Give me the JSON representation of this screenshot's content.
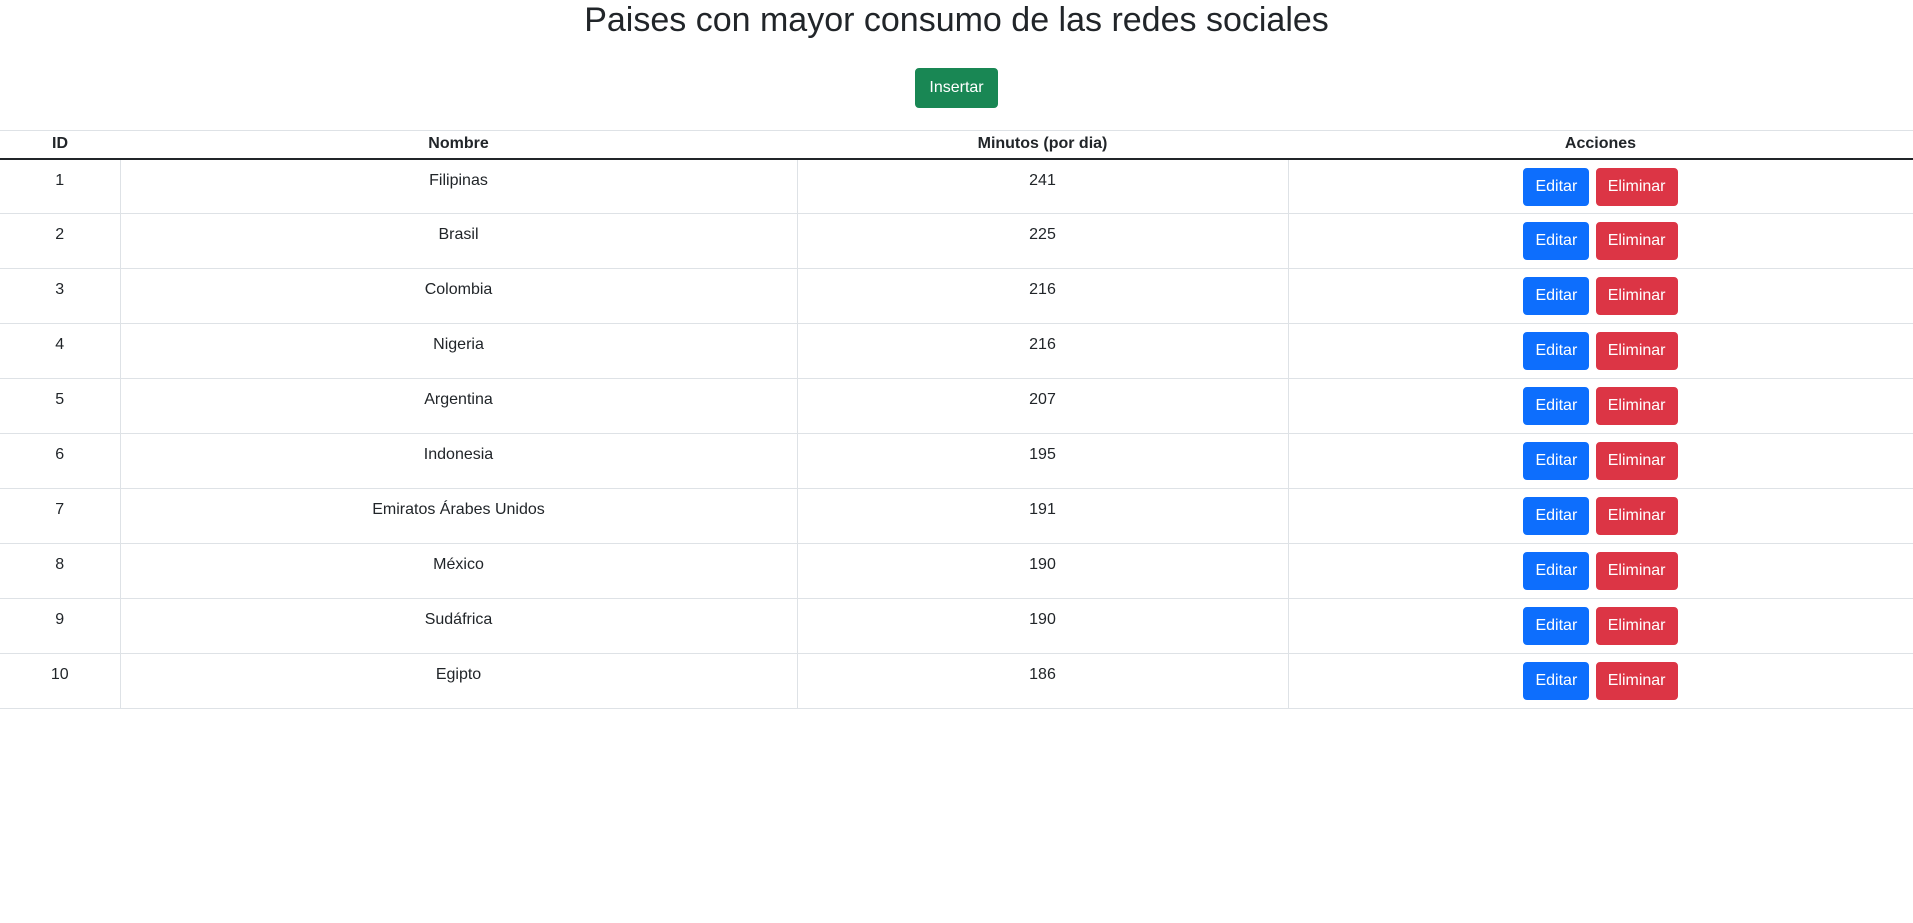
{
  "page": {
    "title": "Paises con mayor consumo de las redes sociales",
    "insert_label": "Insertar"
  },
  "table": {
    "headers": [
      "ID",
      "Nombre",
      "Minutos (por dia)",
      "Acciones"
    ],
    "rows": [
      {
        "id": "1",
        "nombre": "Filipinas",
        "minutos": "241"
      },
      {
        "id": "2",
        "nombre": "Brasil",
        "minutos": "225"
      },
      {
        "id": "3",
        "nombre": "Colombia",
        "minutos": "216"
      },
      {
        "id": "4",
        "nombre": "Nigeria",
        "minutos": "216"
      },
      {
        "id": "5",
        "nombre": "Argentina",
        "minutos": "207"
      },
      {
        "id": "6",
        "nombre": "Indonesia",
        "minutos": "195"
      },
      {
        "id": "7",
        "nombre": "Emiratos Árabes Unidos",
        "minutos": "191"
      },
      {
        "id": "8",
        "nombre": "México",
        "minutos": "190"
      },
      {
        "id": "9",
        "nombre": "Sudáfrica",
        "minutos": "190"
      },
      {
        "id": "10",
        "nombre": "Egipto",
        "minutos": "186"
      }
    ],
    "edit_label": "Editar",
    "delete_label": "Eliminar"
  },
  "colors": {
    "success": "#198754",
    "primary": "#0d6efd",
    "danger": "#dc3545"
  }
}
